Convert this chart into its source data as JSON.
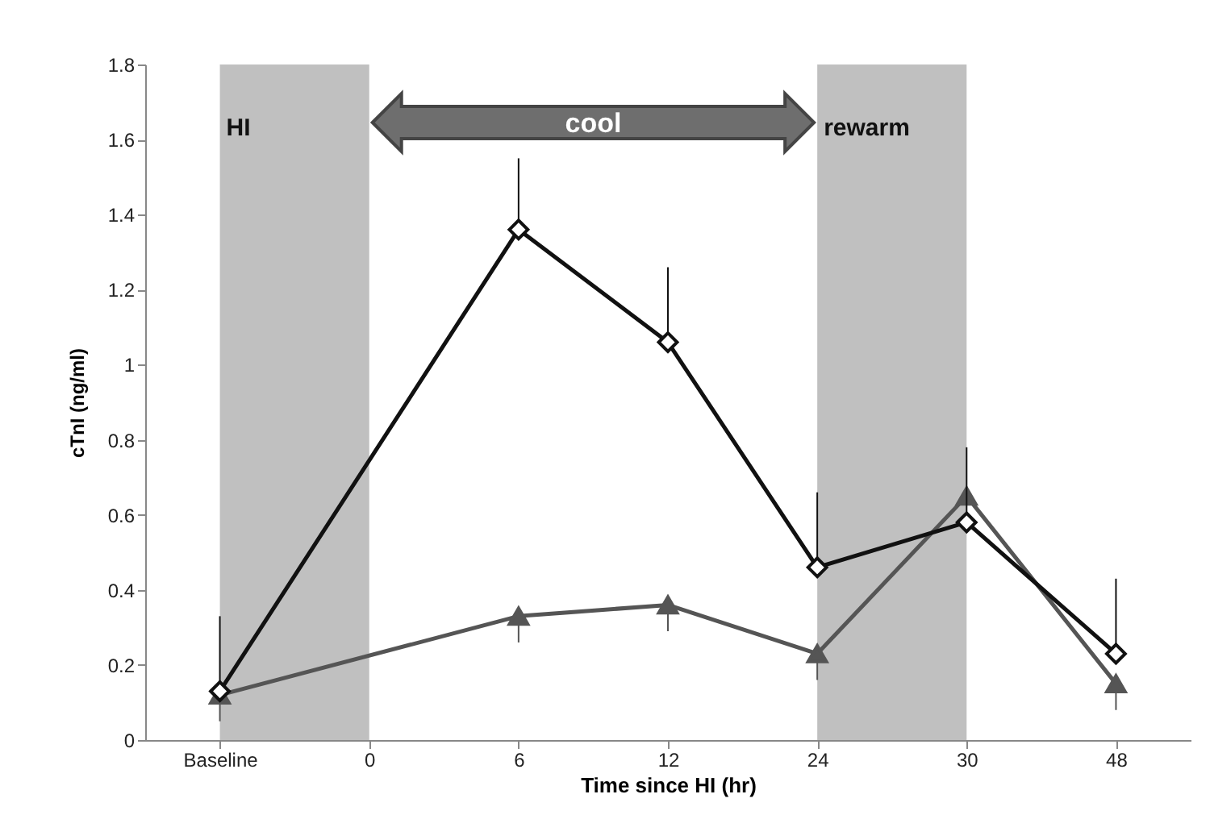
{
  "chart_data": {
    "type": "line",
    "xlabel": "Time since HI (hr)",
    "ylabel": "cTnI (ng/ml)",
    "categories": [
      "Baseline",
      "0",
      "6",
      "12",
      "24",
      "30",
      "48"
    ],
    "ylim": [
      0,
      1.8
    ],
    "yticks": [
      0,
      0.2,
      0.4,
      0.6,
      0.8,
      1,
      1.2,
      1.4,
      1.6,
      1.8
    ],
    "grid": false,
    "series": [
      {
        "color": "#111111",
        "marker": "diamond",
        "values": [
          0.13,
          null,
          1.36,
          1.06,
          0.46,
          0.58,
          0.23
        ],
        "errors": [
          [
            0.13,
            0.33
          ],
          null,
          [
            1.36,
            1.55
          ],
          [
            1.06,
            1.26
          ],
          [
            0.46,
            0.66
          ],
          [
            0.58,
            0.78
          ],
          [
            0.23,
            0.43
          ]
        ]
      },
      {
        "color": "#555555",
        "marker": "triangle",
        "values": [
          0.12,
          null,
          0.33,
          0.36,
          0.23,
          0.65,
          0.15
        ],
        "errors": [
          [
            0.05,
            0.12
          ],
          null,
          [
            0.26,
            0.33
          ],
          [
            0.29,
            0.36
          ],
          [
            0.16,
            0.23
          ],
          null,
          [
            0.08,
            0.15
          ]
        ]
      }
    ],
    "bands": [
      {
        "axis": "x",
        "from": "Baseline",
        "to": "0",
        "label": "HI",
        "color": "#c0c0c0"
      },
      {
        "axis": "x",
        "from": "24",
        "to": "30",
        "label": "rewarm",
        "color": "#c0c0c0"
      }
    ],
    "annotations": [
      "cool"
    ]
  }
}
